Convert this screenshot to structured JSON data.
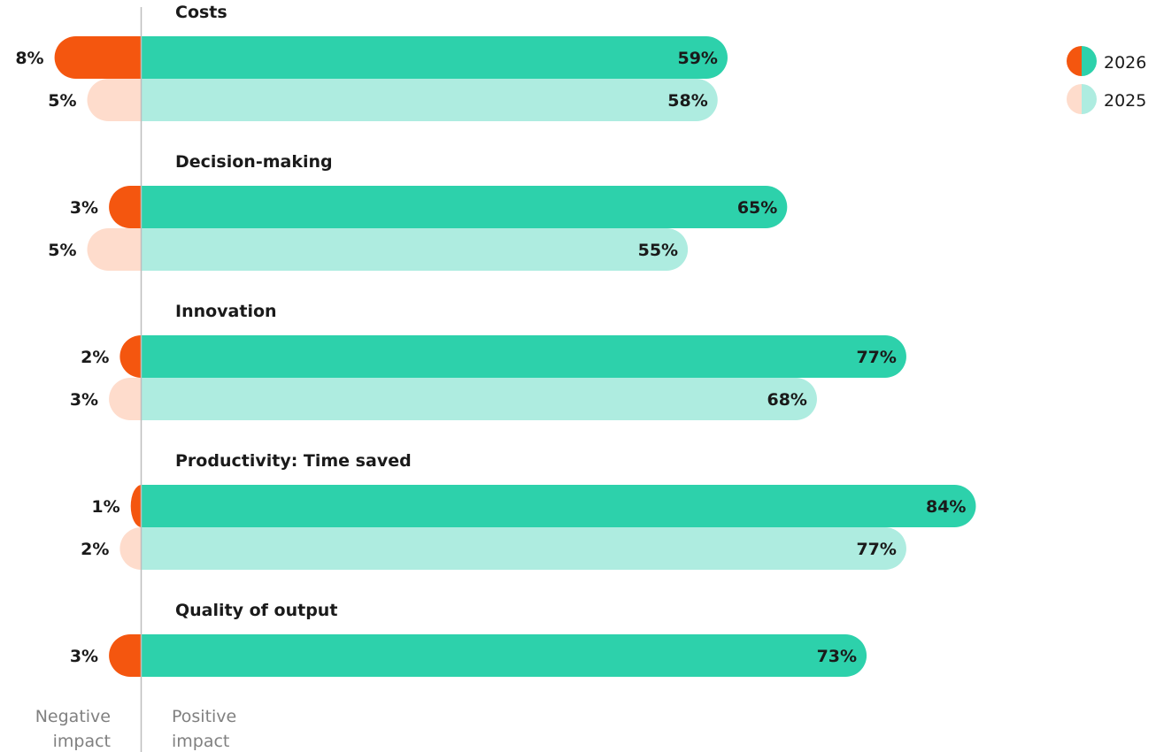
{
  "chart_data": {
    "type": "bar",
    "orientation": "horizontal",
    "diverging": true,
    "categories": [
      "Costs",
      "Decision-making",
      "Innovation",
      "Productivity: Time saved",
      "Quality of output"
    ],
    "series": [
      {
        "name": "2026",
        "positive": [
          59,
          65,
          77,
          84,
          73
        ],
        "negative": [
          8,
          3,
          2,
          1,
          3
        ],
        "positive_labels": [
          "59%",
          "65%",
          "77%",
          "84%",
          "73%"
        ],
        "negative_labels": [
          "8%",
          "3%",
          "2%",
          "1%",
          "3%"
        ],
        "positive_color": "#2dd1ab",
        "negative_color": "#f4560f"
      },
      {
        "name": "2025",
        "positive": [
          58,
          55,
          68,
          77,
          null
        ],
        "negative": [
          5,
          5,
          3,
          2,
          null
        ],
        "positive_labels": [
          "58%",
          "55%",
          "68%",
          "77%",
          ""
        ],
        "negative_labels": [
          "5%",
          "5%",
          "3%",
          "2%",
          ""
        ],
        "positive_color": "#aeece0",
        "negative_color": "#fedccc"
      }
    ],
    "axis_labels": {
      "negative": [
        "Negative",
        "impact"
      ],
      "positive": [
        "Positive",
        "impact"
      ]
    },
    "legend_position": "top-right",
    "axis_line_color": "#bdbdbd",
    "axis_label_color": "#808080"
  }
}
